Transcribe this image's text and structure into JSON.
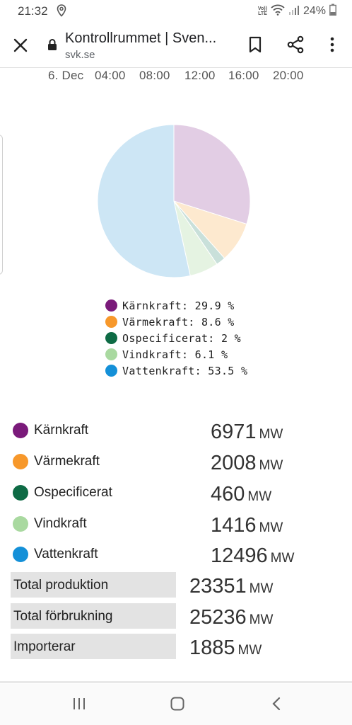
{
  "status": {
    "time": "21:32",
    "battery": "24%",
    "volte_top": "Vo))",
    "volte_bottom": "LTE"
  },
  "browser": {
    "title": "Kontrollrummet | Sven...",
    "url": "svk.se"
  },
  "time_axis": [
    "6. Dec",
    "04:00",
    "08:00",
    "12:00",
    "16:00",
    "20:00"
  ],
  "chart_data": {
    "type": "pie",
    "slices": [
      {
        "name": "Kärnkraft",
        "value": 29.9,
        "color": "#e2cde4"
      },
      {
        "name": "Värmekraft",
        "value": 8.6,
        "color": "#fde9cf"
      },
      {
        "name": "Ospecificerat",
        "value": 2,
        "color": "#c9e0da"
      },
      {
        "name": "Vindkraft",
        "value": 6.1,
        "color": "#e5f3e2"
      },
      {
        "name": "Vattenkraft",
        "value": 53.5,
        "color": "#cde6f5"
      }
    ],
    "legend_labels": [
      "Kärnkraft: 29.9 %",
      "Värmekraft: 8.6 %",
      "Ospecificerat: 2 %",
      "Vindkraft: 6.1 %",
      "Vattenkraft: 53.5 %"
    ],
    "legend_colors": [
      "#7a1a7a",
      "#f7982b",
      "#0e6b45",
      "#a9d9a0",
      "#1490d8"
    ]
  },
  "production": [
    {
      "name": "Kärnkraft",
      "value": "6971",
      "unit": "MW",
      "color": "#7a1a7a"
    },
    {
      "name": "Värmekraft",
      "value": "2008",
      "unit": "MW",
      "color": "#f7982b"
    },
    {
      "name": "Ospecificerat",
      "value": "460",
      "unit": "MW",
      "color": "#0e6b45"
    },
    {
      "name": "Vindkraft",
      "value": "1416",
      "unit": "MW",
      "color": "#a9d9a0"
    },
    {
      "name": "Vattenkraft",
      "value": "12496",
      "unit": "MW",
      "color": "#1490d8"
    }
  ],
  "totals": [
    {
      "name": "Total produktion",
      "value": "23351",
      "unit": "MW"
    },
    {
      "name": "Total förbrukning",
      "value": "25236",
      "unit": "MW"
    },
    {
      "name": "Importerar",
      "value": "1885",
      "unit": "MW"
    }
  ]
}
